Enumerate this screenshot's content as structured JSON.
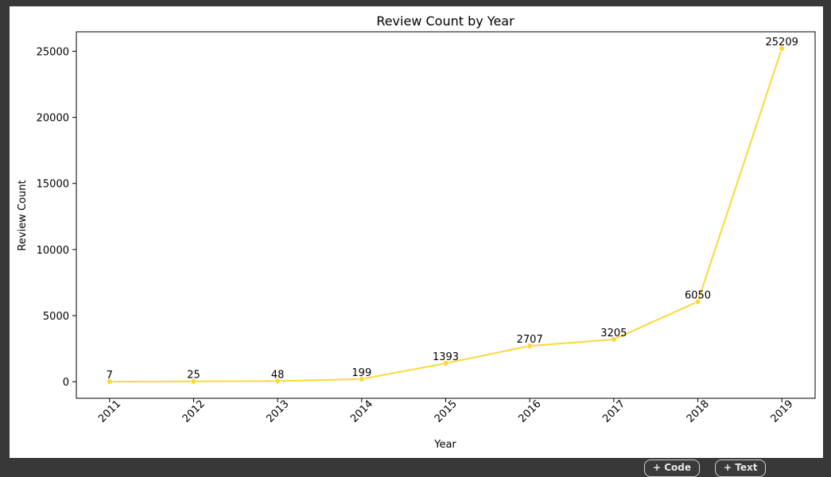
{
  "chart_data": {
    "type": "line",
    "title": "Review Count by Year",
    "xlabel": "Year",
    "ylabel": "Review Count",
    "categories": [
      "2011",
      "2012",
      "2013",
      "2014",
      "2015",
      "2016",
      "2017",
      "2018",
      "2019"
    ],
    "values": [
      7,
      25,
      48,
      199,
      1393,
      2707,
      3205,
      6050,
      25209
    ],
    "data_labels": [
      "7",
      "25",
      "48",
      "199",
      "1393",
      "2707",
      "3205",
      "6050",
      "25209"
    ],
    "yticks": [
      0,
      5000,
      10000,
      15000,
      20000,
      25000
    ],
    "ytick_labels": [
      "0",
      "5000",
      "10000",
      "15000",
      "20000",
      "25000"
    ],
    "ylim": [
      -1254,
      26470
    ],
    "grid": false,
    "line_color": "#fdd835",
    "marker_color": "#fdd835"
  },
  "toolbar": {
    "code_button": "+ Code",
    "text_button": "+ Text"
  },
  "colors": {
    "background": "#383838",
    "output": "#ffffff"
  }
}
